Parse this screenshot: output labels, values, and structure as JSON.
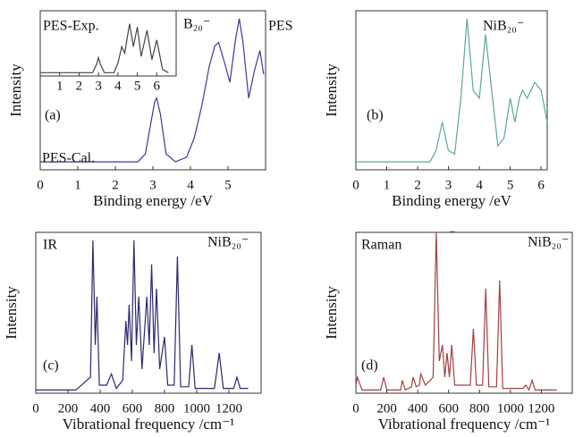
{
  "chart_data": [
    {
      "type": "line",
      "xlabel": "Binding energy /eV",
      "ylabel": "Intensity",
      "xlim": [
        0,
        6
      ],
      "xticks": [
        0,
        1,
        2,
        3,
        4,
        5
      ],
      "ylim": [
        0,
        1
      ],
      "x": [
        0,
        2.6,
        2.8,
        2.95,
        3.05,
        3.1,
        3.2,
        3.35,
        3.6,
        3.9,
        4.1,
        4.3,
        4.5,
        4.65,
        4.75,
        4.9,
        5.05,
        5.2,
        5.3,
        5.4,
        5.55,
        5.7,
        5.85,
        5.95
      ],
      "series": [
        {
          "name": "PES-Cal.",
          "color": "#3a3a9a",
          "values": [
            0.05,
            0.05,
            0.1,
            0.3,
            0.43,
            0.45,
            0.35,
            0.1,
            0.05,
            0.08,
            0.2,
            0.4,
            0.65,
            0.78,
            0.8,
            0.68,
            0.55,
            0.82,
            0.95,
            0.8,
            0.45,
            0.62,
            0.75,
            0.6
          ]
        }
      ],
      "annotations": [
        "(a)",
        "B₂₀⁻",
        "PES"
      ]
    },
    {
      "type": "line",
      "xlim": [
        0,
        7
      ],
      "xticks": [
        1,
        2,
        3,
        4,
        5,
        6
      ],
      "ylim": [
        0,
        1
      ],
      "x": [
        0,
        2.7,
        2.9,
        3.0,
        3.1,
        3.3,
        3.8,
        4.0,
        4.2,
        4.35,
        4.6,
        4.8,
        5.0,
        5.2,
        5.5,
        5.75,
        6.0,
        6.3,
        6.6
      ],
      "series": [
        {
          "name": "PES-Exp.",
          "color": "#444444",
          "values": [
            0.05,
            0.05,
            0.18,
            0.28,
            0.18,
            0.05,
            0.05,
            0.2,
            0.45,
            0.35,
            0.8,
            0.45,
            0.75,
            0.3,
            0.7,
            0.25,
            0.55,
            0.1,
            0.05
          ]
        }
      ],
      "annotations": []
    },
    {
      "type": "line",
      "xlabel": "Binding energy /eV",
      "ylabel": "Intensity",
      "xlim": [
        0,
        6.2
      ],
      "xticks": [
        0,
        1,
        2,
        3,
        4,
        5,
        6
      ],
      "ylim": [
        0,
        1
      ],
      "x": [
        0,
        2.4,
        2.6,
        2.8,
        3.0,
        3.2,
        3.4,
        3.6,
        3.8,
        4.0,
        4.2,
        4.4,
        4.6,
        4.8,
        5.0,
        5.15,
        5.3,
        5.4,
        5.55,
        5.8,
        6.0,
        6.2
      ],
      "series": [
        {
          "color": "#5aa8a0",
          "values": [
            0.05,
            0.05,
            0.12,
            0.3,
            0.12,
            0.1,
            0.45,
            0.95,
            0.5,
            0.45,
            0.85,
            0.5,
            0.15,
            0.2,
            0.45,
            0.3,
            0.45,
            0.5,
            0.45,
            0.55,
            0.5,
            0.3
          ]
        }
      ],
      "annotations": [
        "(b)",
        "NiB₂₀⁻"
      ]
    },
    {
      "type": "line",
      "xlabel": "Vibrational frequency /cm⁻¹",
      "ylabel": "Intensity",
      "xlim": [
        0,
        1400
      ],
      "xticks": [
        0,
        200,
        400,
        600,
        800,
        1000,
        1200
      ],
      "ylim": [
        0,
        1
      ],
      "x": [
        0,
        250,
        340,
        355,
        370,
        380,
        395,
        440,
        470,
        500,
        540,
        560,
        570,
        580,
        595,
        610,
        625,
        640,
        660,
        690,
        705,
        720,
        735,
        750,
        770,
        800,
        820,
        860,
        880,
        900,
        950,
        970,
        990,
        1110,
        1140,
        1165,
        1230,
        1250,
        1270,
        1320
      ],
      "series": [
        {
          "name": "IR",
          "color": "#2a2a6a",
          "values": [
            0.02,
            0.02,
            0.1,
            0.95,
            0.3,
            0.6,
            0.05,
            0.05,
            0.12,
            0.03,
            0.08,
            0.45,
            0.3,
            0.55,
            0.2,
            0.95,
            0.3,
            0.6,
            0.15,
            0.6,
            0.3,
            0.8,
            0.25,
            0.65,
            0.15,
            0.35,
            0.05,
            0.05,
            0.85,
            0.04,
            0.04,
            0.3,
            0.03,
            0.03,
            0.25,
            0.03,
            0.03,
            0.1,
            0.03,
            0.03
          ]
        }
      ],
      "annotations": [
        "(c)",
        "NiB₂₀⁻"
      ]
    },
    {
      "type": "line",
      "xlabel": "Vibrational frequency /cm⁻¹",
      "ylabel": "Intensity",
      "xlim": [
        0,
        1400
      ],
      "xticks": [
        0,
        200,
        400,
        600,
        800,
        1000,
        1200
      ],
      "ylim": [
        0,
        1
      ],
      "x": [
        0,
        10,
        40,
        160,
        180,
        200,
        290,
        300,
        320,
        360,
        370,
        390,
        410,
        420,
        450,
        500,
        520,
        540,
        560,
        575,
        590,
        605,
        620,
        640,
        740,
        760,
        780,
        820,
        840,
        860,
        910,
        930,
        950,
        1080,
        1100,
        1120,
        1140,
        1160,
        1300
      ],
      "series": [
        {
          "name": "Raman",
          "color": "#a04040",
          "values": [
            0.05,
            0.1,
            0.02,
            0.02,
            0.1,
            0.02,
            0.02,
            0.08,
            0.02,
            0.04,
            0.1,
            0.04,
            0.05,
            0.12,
            0.05,
            0.1,
            1.0,
            0.2,
            0.3,
            0.1,
            0.25,
            0.1,
            0.3,
            0.05,
            0.05,
            0.4,
            0.05,
            0.05,
            0.65,
            0.04,
            0.04,
            0.7,
            0.03,
            0.03,
            0.05,
            0.02,
            0.08,
            0.02,
            0.02
          ]
        }
      ],
      "annotations": [
        "(d)",
        "NiB₂₀⁻"
      ]
    }
  ]
}
